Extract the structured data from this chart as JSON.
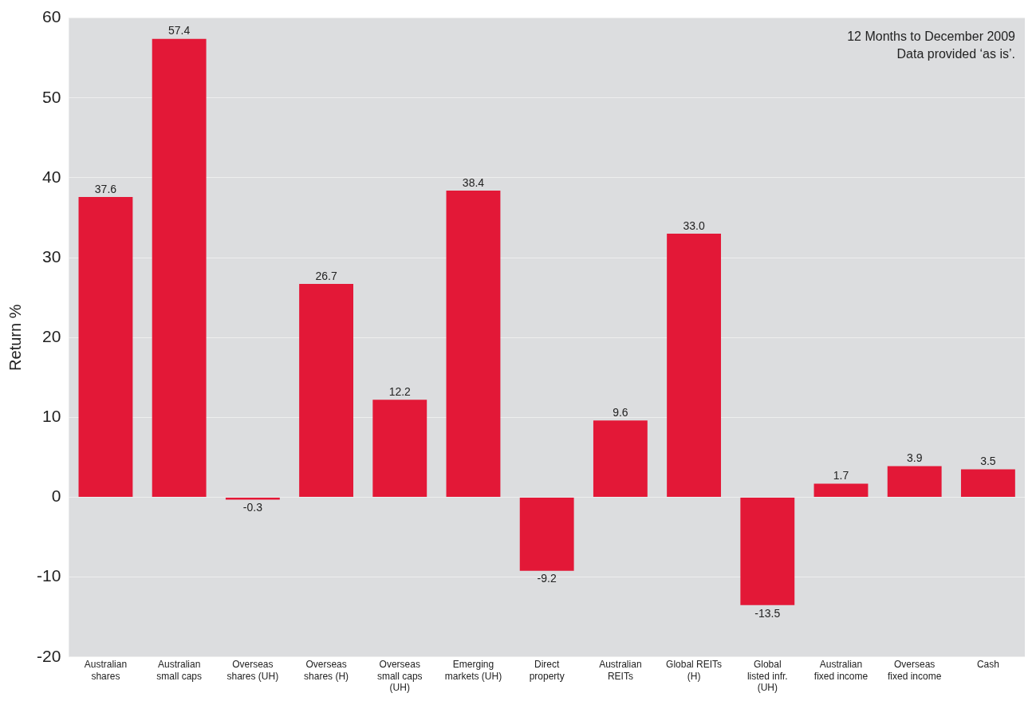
{
  "chart_data": {
    "type": "bar",
    "ylabel": "Return %",
    "categories": [
      "Australian shares",
      "Australian small caps",
      "Overseas shares (UH)",
      "Overseas shares (H)",
      "Overseas small caps (UH)",
      "Emerging markets (UH)",
      "Direct property",
      "Australian REITs",
      "Global REITs (H)",
      "Global listed infr. (UH)",
      "Australian fixed income",
      "Overseas fixed income",
      "Cash"
    ],
    "values": [
      37.6,
      57.4,
      -0.3,
      26.7,
      12.2,
      38.4,
      -9.2,
      9.6,
      33.0,
      -13.5,
      1.7,
      3.9,
      3.5
    ],
    "value_labels": [
      "37.6",
      "57.4",
      "-0.3",
      "26.7",
      "12.2",
      "38.4",
      "-9.2",
      "9.6",
      "33.0",
      "-13.5",
      "1.7",
      "3.9",
      "3.5"
    ],
    "color": "#e31837",
    "ylim": [
      -20,
      60
    ],
    "yticks": [
      -20,
      -10,
      0,
      10,
      20,
      30,
      40,
      50,
      60
    ],
    "grid": "y",
    "legend": false,
    "annotations": [
      "12 Months to December 2009",
      "Data provided ‘as is’."
    ]
  }
}
